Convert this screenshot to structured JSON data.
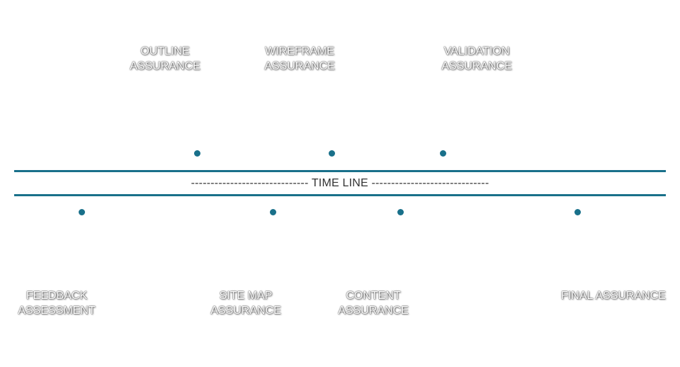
{
  "timeline": {
    "caption": "------------------------------ TIME LINE ------------------------------",
    "line_color": "#19708a",
    "dot_color": "#19708a"
  },
  "milestones_above": [
    {
      "line1": "OUTLINE",
      "line2": "ASSURANCE"
    },
    {
      "line1": "WIREFRAME",
      "line2": "ASSURANCE"
    },
    {
      "line1": "VALIDATION",
      "line2": "ASSURANCE"
    }
  ],
  "milestones_below": [
    {
      "line1": "FEEDBACK",
      "line2": "ASSESSMENT"
    },
    {
      "line1": "SITE MAP",
      "line2": "ASSURANCE"
    },
    {
      "line1": "CONTENT",
      "line2": "ASSURANCE"
    },
    {
      "line1": "FINAL ASSURANCE",
      "line2": ""
    }
  ]
}
